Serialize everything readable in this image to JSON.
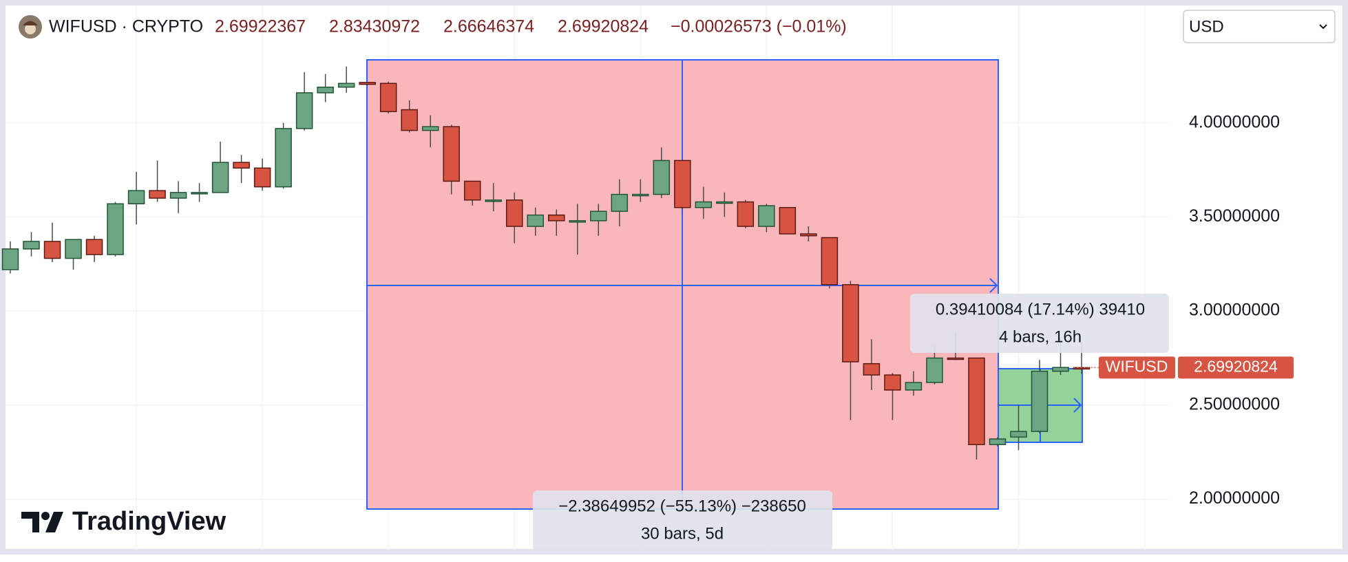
{
  "header": {
    "title": "WIFUSD · CRYPTO",
    "change": "−0.00026573 (−0.01%)",
    "currency": "USD",
    "logo": "TradingView"
  },
  "chart_data": {
    "type": "candlestick",
    "symbol": "WIFUSD",
    "open": [
      3.22,
      3.33,
      3.37,
      3.28,
      3.38,
      3.3,
      3.57,
      3.64,
      3.6,
      3.63,
      3.63,
      3.79,
      3.76,
      3.66,
      3.97,
      4.16,
      4.19,
      4.215,
      4.21,
      4.07,
      3.96,
      3.98,
      3.69,
      3.59,
      3.59,
      3.45,
      3.51,
      3.48,
      3.48,
      3.53,
      3.62,
      3.62,
      3.8,
      3.55,
      3.58,
      3.58,
      3.45,
      3.55,
      3.41,
      3.39,
      3.14,
      2.72,
      2.66,
      2.58,
      2.62,
      2.75,
      2.75,
      2.29,
      2.33,
      2.36,
      2.68,
      2.69922367
    ],
    "high": [
      3.37,
      3.42,
      3.47,
      3.38,
      3.4,
      3.58,
      3.74,
      3.8,
      3.69,
      3.68,
      3.9,
      3.83,
      3.81,
      4.0,
      4.27,
      4.26,
      4.3,
      4.215,
      4.22,
      4.12,
      4.04,
      3.99,
      3.69,
      3.68,
      3.63,
      3.55,
      3.54,
      3.57,
      3.57,
      3.7,
      3.7,
      3.87,
      3.8,
      3.66,
      3.63,
      3.59,
      3.57,
      3.55,
      3.45,
      3.39,
      3.16,
      2.85,
      2.67,
      2.68,
      2.82,
      2.89,
      2.75,
      2.33,
      2.5,
      2.74,
      2.86,
      2.83430972
    ],
    "low": [
      3.2,
      3.29,
      3.26,
      3.22,
      3.26,
      3.29,
      3.46,
      3.58,
      3.52,
      3.58,
      3.63,
      3.68,
      3.64,
      3.65,
      3.96,
      4.11,
      4.16,
      4.2,
      4.05,
      3.95,
      3.87,
      3.62,
      3.56,
      3.53,
      3.36,
      3.4,
      3.4,
      3.3,
      3.4,
      3.45,
      3.58,
      3.6,
      3.54,
      3.49,
      3.5,
      3.44,
      3.42,
      3.41,
      3.37,
      3.12,
      2.42,
      2.58,
      2.42,
      2.55,
      2.61,
      2.74,
      2.21,
      2.28,
      2.26,
      2.35,
      2.66,
      2.66646374
    ],
    "close": [
      3.33,
      3.37,
      3.28,
      3.38,
      3.3,
      3.57,
      3.64,
      3.6,
      3.63,
      3.63,
      3.79,
      3.76,
      3.66,
      3.97,
      4.16,
      4.19,
      4.21,
      4.205,
      4.06,
      3.96,
      3.98,
      3.69,
      3.59,
      3.59,
      3.45,
      3.51,
      3.48,
      3.48,
      3.53,
      3.62,
      3.62,
      3.8,
      3.55,
      3.58,
      3.58,
      3.45,
      3.56,
      3.41,
      3.4,
      3.14,
      2.73,
      2.66,
      2.58,
      2.62,
      2.75,
      2.745,
      2.29,
      2.32,
      2.36,
      2.68,
      2.7,
      2.69920824
    ],
    "up_color": "#6ba583",
    "down_color": "#d75442",
    "ylim": [
      1.728,
      4.624
    ],
    "yticks": [
      {
        "value": 2,
        "label": "2.00000000"
      },
      {
        "value": 2.5,
        "label": "2.50000000"
      },
      {
        "value": 3,
        "label": "3.00000000"
      },
      {
        "value": 3.5,
        "label": "3.50000000"
      },
      {
        "value": 4,
        "label": "4.00000000"
      }
    ],
    "grid": true,
    "measurements": [
      {
        "label": "−2.38649952 (−55.13%) −238650",
        "sublabel": "30 bars, 5d"
      },
      {
        "label": "0.39410084 (17.14%) 39410",
        "sublabel": "4 bars, 16h"
      }
    ]
  }
}
